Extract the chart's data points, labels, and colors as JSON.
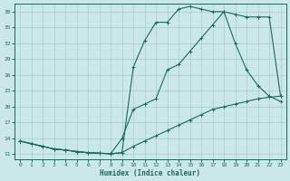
{
  "xlabel": "Humidex (Indice chaleur)",
  "bg_color": "#cbe8e8",
  "grid_color": "#aacccc",
  "line_color": "#1a6b5a",
  "xlim": [
    -0.5,
    23.5
  ],
  "ylim": [
    10.0,
    39.5
  ],
  "xticks": [
    0,
    1,
    2,
    3,
    4,
    5,
    6,
    7,
    8,
    9,
    10,
    11,
    12,
    13,
    14,
    15,
    16,
    17,
    18,
    19,
    20,
    21,
    22,
    23
  ],
  "yticks": [
    11,
    14,
    17,
    20,
    23,
    26,
    29,
    32,
    35,
    38
  ],
  "line1_x": [
    0,
    1,
    2,
    3,
    4,
    5,
    6,
    7,
    8,
    9,
    10,
    11,
    12,
    13,
    14,
    15,
    16,
    17,
    18,
    19,
    20,
    21,
    22,
    23
  ],
  "line1_y": [
    13.5,
    13.0,
    12.5,
    12.0,
    11.8,
    11.5,
    11.3,
    11.2,
    11.1,
    11.3,
    12.5,
    13.5,
    14.5,
    15.5,
    16.5,
    17.5,
    18.5,
    19.5,
    20.0,
    20.5,
    21.0,
    21.5,
    21.8,
    22.0
  ],
  "line2_x": [
    0,
    1,
    2,
    3,
    4,
    5,
    6,
    7,
    8,
    9,
    10,
    11,
    12,
    13,
    14,
    15,
    16,
    17,
    18,
    19,
    20,
    21,
    22,
    23
  ],
  "line2_y": [
    13.5,
    13.0,
    12.5,
    12.0,
    11.8,
    11.5,
    11.3,
    11.2,
    11.1,
    14.0,
    19.5,
    20.5,
    21.5,
    27.0,
    28.0,
    30.5,
    33.0,
    35.5,
    38.0,
    32.0,
    27.0,
    24.0,
    22.0,
    21.0
  ],
  "line3_x": [
    0,
    1,
    2,
    3,
    4,
    5,
    6,
    7,
    8,
    9,
    10,
    11,
    12,
    13,
    14,
    15,
    16,
    17,
    18,
    19,
    20,
    21,
    22,
    23
  ],
  "line3_y": [
    13.5,
    13.0,
    12.5,
    12.0,
    11.8,
    11.5,
    11.3,
    11.2,
    11.1,
    11.3,
    27.5,
    32.5,
    36.0,
    36.0,
    38.5,
    39.0,
    38.5,
    38.0,
    38.0,
    37.5,
    37.0,
    37.0,
    37.0,
    22.0
  ]
}
